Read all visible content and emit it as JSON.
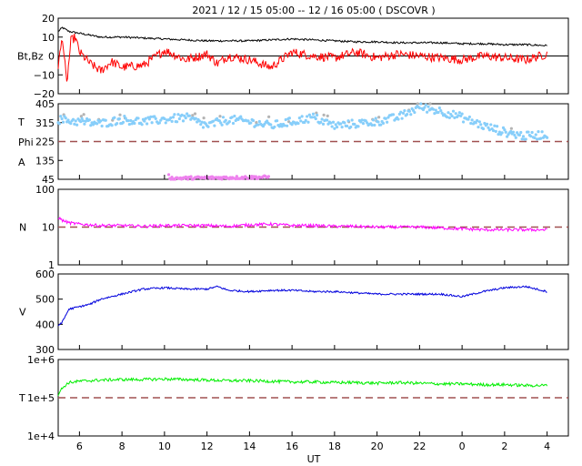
{
  "title": "2021 / 12 / 15   05:00 -- 12 / 16   05:00 ( DSCOVR )",
  "x_label": "UT",
  "x_ticks": [
    "6",
    "8",
    "10",
    "12",
    "14",
    "16",
    "18",
    "20",
    "22",
    "0",
    "2",
    "4"
  ],
  "colors": {
    "bt": "#000000",
    "bz": "#ff0000",
    "phi": "#87cefa",
    "phi_gap": "#b4b4b4",
    "theta": "#ee82ee",
    "density": "#ff00ff",
    "speed": "#0000dd",
    "temperature": "#00ee00",
    "reference_line": "#a05050"
  },
  "chart_data": [
    {
      "type": "line",
      "panel": "magnetic field",
      "ylabel": "Bt,Bz",
      "x_range_hours_ut": [
        5,
        29
      ],
      "y_ticks": [
        "20",
        "10",
        "0",
        "−10",
        "−20"
      ],
      "ylim": [
        -20,
        20
      ],
      "grid": false,
      "reference_line": 0,
      "series": [
        {
          "color": "#000000",
          "x": [
            5,
            5.2,
            5.5,
            6,
            6.5,
            7,
            8,
            9,
            10,
            11,
            12,
            13,
            14,
            15,
            16,
            17,
            18,
            19,
            20,
            21,
            22,
            23,
            24,
            25,
            26,
            27,
            28
          ],
          "values": [
            13,
            15,
            13,
            12,
            11,
            10,
            10,
            9.5,
            9,
            8.5,
            8,
            8,
            8,
            8.5,
            9,
            8.5,
            8,
            7.5,
            7.5,
            7,
            7,
            7,
            6.5,
            6.5,
            6,
            6,
            5.5
          ]
        },
        {
          "color": "#ff0000",
          "x": [
            5,
            5.2,
            5.4,
            5.6,
            5.8,
            6,
            6.5,
            7,
            7.5,
            8,
            9,
            10,
            11,
            12,
            12.5,
            13,
            14,
            15,
            16,
            17,
            18,
            19,
            20,
            21,
            22,
            23,
            24,
            25,
            26,
            27,
            28
          ],
          "values": [
            -5,
            10,
            -15,
            8,
            10,
            2,
            -4,
            -8,
            -3,
            -6,
            -5,
            3,
            -2,
            1,
            -4,
            0,
            -2,
            -6,
            2,
            0,
            -1,
            2,
            -1,
            1,
            0,
            -1,
            -2,
            0,
            -1,
            -2,
            1
          ]
        }
      ]
    },
    {
      "type": "scatter",
      "panel": "field angles",
      "ylabel_lines": [
        "T",
        "Phi",
        "A"
      ],
      "x_range_hours_ut": [
        5,
        29
      ],
      "y_ticks": [
        "405",
        "315",
        "225",
        "135",
        "45"
      ],
      "ylim": [
        45,
        405
      ],
      "grid": false,
      "reference_line": 225,
      "series": [
        {
          "color": "#87cefa",
          "x": [
            5,
            6,
            7,
            8,
            9,
            10,
            11,
            12,
            13,
            14,
            15,
            16,
            17,
            18,
            19,
            20,
            21,
            22,
            23,
            24,
            25,
            26,
            27,
            28
          ],
          "values": [
            330,
            320,
            310,
            330,
            320,
            330,
            340,
            300,
            330,
            320,
            300,
            320,
            340,
            300,
            310,
            320,
            340,
            390,
            370,
            340,
            300,
            270,
            250,
            260
          ]
        },
        {
          "color": "#ee82ee",
          "x": [
            10.2,
            10.3,
            14.9
          ],
          "values": [
            60,
            50,
            55
          ]
        }
      ]
    },
    {
      "type": "line",
      "panel": "density",
      "ylabel": "N",
      "scale": "log",
      "x_range_hours_ut": [
        5,
        29
      ],
      "y_ticks": [
        "100",
        "10",
        "1"
      ],
      "ylim": [
        1,
        100
      ],
      "grid": false,
      "reference_line": 10,
      "series": [
        {
          "color": "#ff00ff",
          "x": [
            5,
            5.2,
            5.5,
            6,
            7,
            8,
            9,
            10,
            11,
            12,
            13,
            14,
            15,
            16,
            17,
            18,
            19,
            20,
            21,
            22,
            23,
            24,
            25,
            26,
            27,
            28
          ],
          "values": [
            18,
            15,
            13,
            12,
            11,
            11,
            10.5,
            11,
            11,
            11,
            10.5,
            11.5,
            12,
            11,
            11,
            10.5,
            10.5,
            10,
            10,
            10,
            9.5,
            9,
            8.5,
            8.5,
            8.5,
            8.5
          ]
        }
      ]
    },
    {
      "type": "line",
      "panel": "speed",
      "ylabel": "V",
      "x_range_hours_ut": [
        5,
        29
      ],
      "y_ticks": [
        "600",
        "500",
        "400",
        "300"
      ],
      "ylim": [
        300,
        600
      ],
      "grid": false,
      "series": [
        {
          "color": "#0000dd",
          "x": [
            5,
            5.2,
            5.5,
            6,
            6.5,
            7,
            8,
            9,
            10,
            11,
            12,
            12.5,
            13,
            14,
            15,
            16,
            17,
            18,
            19,
            20,
            21,
            22,
            23,
            24,
            25,
            26,
            27,
            28
          ],
          "values": [
            395,
            410,
            460,
            470,
            480,
            500,
            520,
            540,
            545,
            540,
            540,
            550,
            535,
            530,
            535,
            535,
            530,
            530,
            525,
            520,
            520,
            520,
            520,
            510,
            530,
            545,
            550,
            530
          ]
        }
      ]
    },
    {
      "type": "line",
      "panel": "temperature",
      "ylabel": "T",
      "scale": "log",
      "x_range_hours_ut": [
        5,
        29
      ],
      "y_ticks": [
        "1e+6",
        "1e+5",
        "1e+4"
      ],
      "ylim": [
        10000,
        1000000
      ],
      "grid": false,
      "reference_line": 100000,
      "series": [
        {
          "color": "#00ee00",
          "x": [
            5,
            5.2,
            5.5,
            6,
            7,
            8,
            9,
            10,
            11,
            12,
            13,
            14,
            15,
            16,
            17,
            18,
            19,
            20,
            21,
            22,
            23,
            24,
            25,
            26,
            27,
            28
          ],
          "values": [
            120000,
            180000,
            250000,
            270000,
            290000,
            300000,
            300000,
            310000,
            300000,
            290000,
            280000,
            280000,
            270000,
            260000,
            260000,
            250000,
            250000,
            240000,
            250000,
            240000,
            230000,
            230000,
            220000,
            220000,
            210000,
            210000
          ]
        }
      ]
    }
  ]
}
